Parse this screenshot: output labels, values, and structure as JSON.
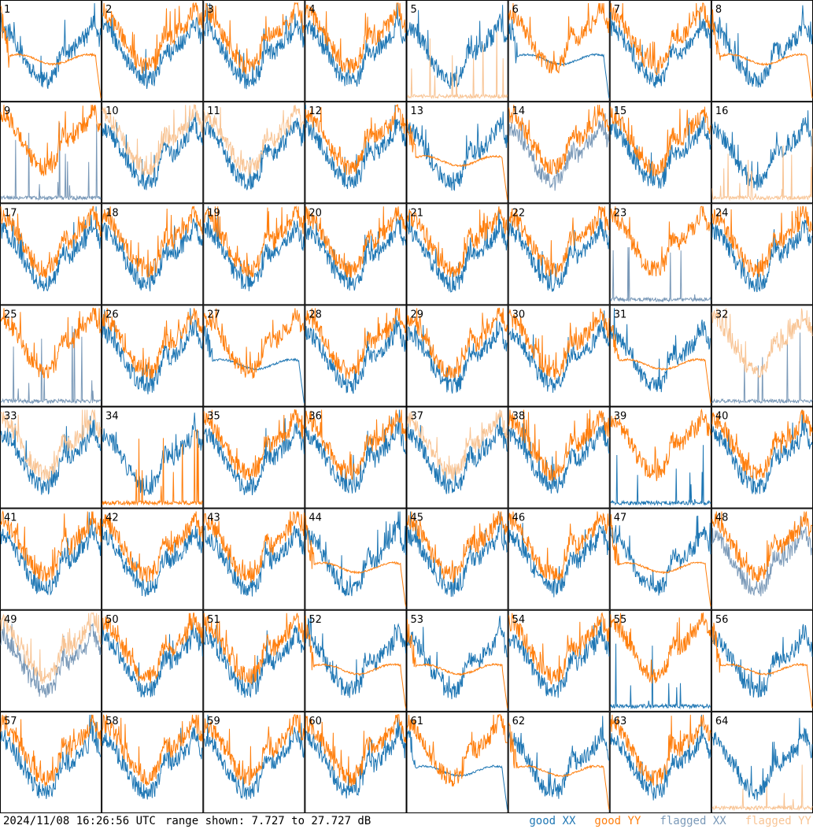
{
  "footer": {
    "timestamp": "2024/11/08 16:26:56 UTC",
    "range_label": "range shown: 7.727 to 27.727 dB"
  },
  "chart_data": {
    "type": "line",
    "ylim": [
      7.727,
      27.727
    ],
    "yunit": "dB",
    "grid": false,
    "legend_placement": "bottom-right",
    "legend": [
      {
        "key": "good_xx",
        "label": "good XX",
        "color": "#1f77b4"
      },
      {
        "key": "good_yy",
        "label": "good YY",
        "color": "#ff7f0e"
      },
      {
        "key": "flagged_xx",
        "label": "flagged XX",
        "color": "#7a99b8"
      },
      {
        "key": "flagged_yy",
        "label": "flagged YY",
        "color": "#f8c494"
      }
    ],
    "panels": [
      {
        "label": "1",
        "xx_style": "normal",
        "yy_style": "lowflat",
        "xx_flag": false,
        "yy_flag": false
      },
      {
        "label": "2",
        "xx_style": "normal",
        "yy_style": "normal",
        "xx_flag": false,
        "yy_flag": false
      },
      {
        "label": "3",
        "xx_style": "normal",
        "yy_style": "normal",
        "xx_flag": false,
        "yy_flag": false
      },
      {
        "label": "4",
        "xx_style": "normal",
        "yy_style": "normal",
        "xx_flag": false,
        "yy_flag": false
      },
      {
        "label": "5",
        "xx_style": "normal",
        "yy_style": "spiky",
        "xx_flag": false,
        "yy_flag": true
      },
      {
        "label": "6",
        "xx_style": "lowflat",
        "yy_style": "normal",
        "xx_flag": false,
        "yy_flag": false
      },
      {
        "label": "7",
        "xx_style": "normal",
        "yy_style": "normal",
        "xx_flag": false,
        "yy_flag": false
      },
      {
        "label": "8",
        "xx_style": "normal",
        "yy_style": "lowflat",
        "xx_flag": false,
        "yy_flag": false
      },
      {
        "label": "9",
        "xx_style": "spiky",
        "yy_style": "normal",
        "xx_flag": true,
        "yy_flag": false
      },
      {
        "label": "10",
        "xx_style": "normal",
        "yy_style": "normal",
        "xx_flag": false,
        "yy_flag": true
      },
      {
        "label": "11",
        "xx_style": "normal",
        "yy_style": "normal",
        "xx_flag": false,
        "yy_flag": true
      },
      {
        "label": "12",
        "xx_style": "normal",
        "yy_style": "normal",
        "xx_flag": false,
        "yy_flag": false
      },
      {
        "label": "13",
        "xx_style": "normal",
        "yy_style": "lowflat",
        "xx_flag": false,
        "yy_flag": false
      },
      {
        "label": "14",
        "xx_style": "normal",
        "yy_style": "normal",
        "xx_flag": true,
        "yy_flag": false
      },
      {
        "label": "15",
        "xx_style": "normal",
        "yy_style": "normal",
        "xx_flag": false,
        "yy_flag": false
      },
      {
        "label": "16",
        "xx_style": "normal",
        "yy_style": "spiky",
        "xx_flag": false,
        "yy_flag": true
      },
      {
        "label": "17",
        "xx_style": "normal",
        "yy_style": "normal",
        "xx_flag": false,
        "yy_flag": false
      },
      {
        "label": "18",
        "xx_style": "normal",
        "yy_style": "normal",
        "xx_flag": false,
        "yy_flag": false
      },
      {
        "label": "19",
        "xx_style": "normal",
        "yy_style": "normal",
        "xx_flag": false,
        "yy_flag": false
      },
      {
        "label": "20",
        "xx_style": "normal",
        "yy_style": "normal",
        "xx_flag": false,
        "yy_flag": false
      },
      {
        "label": "21",
        "xx_style": "normal",
        "yy_style": "normal",
        "xx_flag": false,
        "yy_flag": false
      },
      {
        "label": "22",
        "xx_style": "normal",
        "yy_style": "normal",
        "xx_flag": false,
        "yy_flag": false
      },
      {
        "label": "23",
        "xx_style": "spiky",
        "yy_style": "normal",
        "xx_flag": true,
        "yy_flag": false
      },
      {
        "label": "24",
        "xx_style": "normal",
        "yy_style": "normal",
        "xx_flag": false,
        "yy_flag": false
      },
      {
        "label": "25",
        "xx_style": "spiky",
        "yy_style": "normal",
        "xx_flag": true,
        "yy_flag": false
      },
      {
        "label": "26",
        "xx_style": "normal",
        "yy_style": "normal",
        "xx_flag": false,
        "yy_flag": false
      },
      {
        "label": "27",
        "xx_style": "lowflat",
        "yy_style": "normal",
        "xx_flag": false,
        "yy_flag": false
      },
      {
        "label": "28",
        "xx_style": "normal",
        "yy_style": "normal",
        "xx_flag": false,
        "yy_flag": false
      },
      {
        "label": "29",
        "xx_style": "normal",
        "yy_style": "normal",
        "xx_flag": false,
        "yy_flag": false
      },
      {
        "label": "30",
        "xx_style": "normal",
        "yy_style": "normal",
        "xx_flag": false,
        "yy_flag": false
      },
      {
        "label": "31",
        "xx_style": "normal",
        "yy_style": "lowflat",
        "xx_flag": false,
        "yy_flag": false
      },
      {
        "label": "32",
        "xx_style": "spiky",
        "yy_style": "normal",
        "xx_flag": true,
        "yy_flag": true
      },
      {
        "label": "33",
        "xx_style": "normal",
        "yy_style": "normal",
        "xx_flag": false,
        "yy_flag": true
      },
      {
        "label": "34",
        "xx_style": "normal",
        "yy_style": "spiky",
        "xx_flag": false,
        "yy_flag": false
      },
      {
        "label": "35",
        "xx_style": "normal",
        "yy_style": "normal",
        "xx_flag": false,
        "yy_flag": false
      },
      {
        "label": "36",
        "xx_style": "normal",
        "yy_style": "normal",
        "xx_flag": false,
        "yy_flag": false
      },
      {
        "label": "37",
        "xx_style": "normal",
        "yy_style": "normal",
        "xx_flag": false,
        "yy_flag": true
      },
      {
        "label": "38",
        "xx_style": "normal",
        "yy_style": "normal",
        "xx_flag": false,
        "yy_flag": false
      },
      {
        "label": "39",
        "xx_style": "spiky",
        "yy_style": "normal",
        "xx_flag": false,
        "yy_flag": false
      },
      {
        "label": "40",
        "xx_style": "normal",
        "yy_style": "normal",
        "xx_flag": false,
        "yy_flag": false
      },
      {
        "label": "41",
        "xx_style": "normal",
        "yy_style": "normal",
        "xx_flag": false,
        "yy_flag": false
      },
      {
        "label": "42",
        "xx_style": "normal",
        "yy_style": "normal",
        "xx_flag": false,
        "yy_flag": false
      },
      {
        "label": "43",
        "xx_style": "normal",
        "yy_style": "normal",
        "xx_flag": false,
        "yy_flag": false
      },
      {
        "label": "44",
        "xx_style": "normal",
        "yy_style": "lowflat",
        "xx_flag": false,
        "yy_flag": false
      },
      {
        "label": "45",
        "xx_style": "normal",
        "yy_style": "normal",
        "xx_flag": false,
        "yy_flag": false
      },
      {
        "label": "46",
        "xx_style": "normal",
        "yy_style": "normal",
        "xx_flag": false,
        "yy_flag": false
      },
      {
        "label": "47",
        "xx_style": "normal",
        "yy_style": "lowflat",
        "xx_flag": false,
        "yy_flag": false
      },
      {
        "label": "48",
        "xx_style": "normal",
        "yy_style": "normal",
        "xx_flag": true,
        "yy_flag": false
      },
      {
        "label": "49",
        "xx_style": "normal",
        "yy_style": "normal",
        "xx_flag": true,
        "yy_flag": true
      },
      {
        "label": "50",
        "xx_style": "normal",
        "yy_style": "normal",
        "xx_flag": false,
        "yy_flag": false
      },
      {
        "label": "51",
        "xx_style": "normal",
        "yy_style": "normal",
        "xx_flag": false,
        "yy_flag": false
      },
      {
        "label": "52",
        "xx_style": "normal",
        "yy_style": "lowflat",
        "xx_flag": false,
        "yy_flag": false
      },
      {
        "label": "53",
        "xx_style": "normal",
        "yy_style": "lowflat",
        "xx_flag": false,
        "yy_flag": false
      },
      {
        "label": "54",
        "xx_style": "normal",
        "yy_style": "normal",
        "xx_flag": false,
        "yy_flag": false
      },
      {
        "label": "55",
        "xx_style": "spiky",
        "yy_style": "normal",
        "xx_flag": false,
        "yy_flag": false
      },
      {
        "label": "56",
        "xx_style": "normal",
        "yy_style": "lowflat",
        "xx_flag": false,
        "yy_flag": false
      },
      {
        "label": "57",
        "xx_style": "normal",
        "yy_style": "normal",
        "xx_flag": false,
        "yy_flag": false
      },
      {
        "label": "58",
        "xx_style": "normal",
        "yy_style": "normal",
        "xx_flag": false,
        "yy_flag": false
      },
      {
        "label": "59",
        "xx_style": "normal",
        "yy_style": "normal",
        "xx_flag": false,
        "yy_flag": false
      },
      {
        "label": "60",
        "xx_style": "normal",
        "yy_style": "normal",
        "xx_flag": false,
        "yy_flag": false
      },
      {
        "label": "61",
        "xx_style": "lowflat",
        "yy_style": "normal",
        "xx_flag": false,
        "yy_flag": false
      },
      {
        "label": "62",
        "xx_style": "normal",
        "yy_style": "lowflat",
        "xx_flag": false,
        "yy_flag": false
      },
      {
        "label": "63",
        "xx_style": "normal",
        "yy_style": "normal",
        "xx_flag": false,
        "yy_flag": false
      },
      {
        "label": "64",
        "xx_style": "normal",
        "yy_style": "spiky",
        "xx_flag": false,
        "yy_flag": true
      }
    ]
  }
}
